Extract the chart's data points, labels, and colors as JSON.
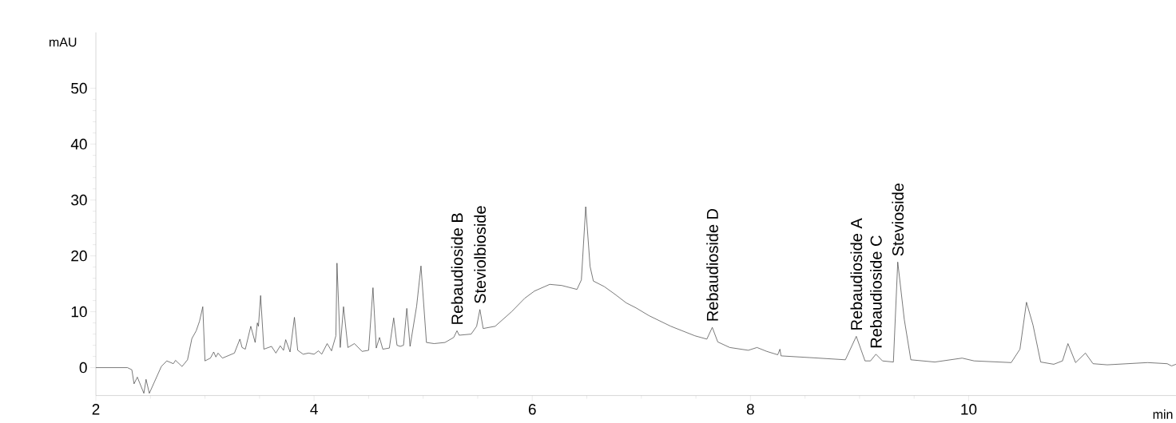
{
  "chart_data": {
    "type": "line",
    "xlabel": "min",
    "ylabel": "mAU",
    "xlim": [
      2,
      11.9
    ],
    "ylim": [
      -5,
      60
    ],
    "xticks": [
      2,
      4,
      6,
      8,
      10
    ],
    "yticks": [
      0,
      10,
      20,
      30,
      40,
      50
    ],
    "series": [
      {
        "color": "#404040",
        "x": [
          2.0,
          2.29,
          2.33,
          2.35,
          2.38,
          2.41,
          2.44,
          2.46,
          2.49,
          2.57,
          2.6,
          2.65,
          2.71,
          2.73,
          2.79,
          2.84,
          2.88,
          2.92,
          2.95,
          2.98,
          3.0,
          3.05,
          3.08,
          3.1,
          3.12,
          3.16,
          3.27,
          3.32,
          3.34,
          3.37,
          3.42,
          3.46,
          3.48,
          3.49,
          3.51,
          3.54,
          3.61,
          3.65,
          3.69,
          3.72,
          3.74,
          3.78,
          3.82,
          3.85,
          3.9,
          3.95,
          4.0,
          4.04,
          4.07,
          4.12,
          4.16,
          4.2,
          4.21,
          4.24,
          4.27,
          4.31,
          4.37,
          4.44,
          4.5,
          4.54,
          4.57,
          4.6,
          4.63,
          4.69,
          4.73,
          4.76,
          4.79,
          4.82,
          4.85,
          4.88,
          4.94,
          4.98,
          5.03,
          5.1,
          5.2,
          5.28,
          5.31,
          5.33,
          5.44,
          5.49,
          5.52,
          5.55,
          5.66,
          5.81,
          5.93,
          6.02,
          6.16,
          6.27,
          6.41,
          6.45,
          6.49,
          6.53,
          6.56,
          6.66,
          6.76,
          6.86,
          6.95,
          7.07,
          7.27,
          7.49,
          7.6,
          7.65,
          7.7,
          7.81,
          7.98,
          8.06,
          8.15,
          8.25,
          8.27,
          8.28,
          8.54,
          8.87,
          8.97,
          9.05,
          9.1,
          9.15,
          9.21,
          9.31,
          9.35,
          9.41,
          9.47,
          9.69,
          9.94,
          10.05,
          10.39,
          10.47,
          10.53,
          10.59,
          10.66,
          10.78,
          10.86,
          10.91,
          10.98,
          11.07,
          11.14,
          11.27,
          11.64,
          11.82,
          11.86,
          11.9
        ],
        "values": [
          0,
          0,
          -0.4,
          -2.9,
          -1.7,
          null,
          -4.6,
          -2.1,
          -4.6,
          null,
          0.2,
          1.2,
          0.7,
          1.3,
          0.2,
          1.4,
          5.2,
          6.6,
          8.3,
          10.9,
          1.2,
          1.7,
          2.8,
          1.9,
          2.6,
          1.7,
          2.6,
          5.1,
          3.6,
          3.3,
          7.4,
          4.5,
          8.0,
          7.4,
          12.9,
          3.3,
          3.8,
          2.6,
          3.9,
          3.1,
          5.0,
          2.8,
          9.0,
          3.1,
          2.4,
          2.6,
          2.4,
          3.0,
          2.4,
          4.3,
          3.0,
          5.7,
          18.7,
          3.6,
          10.9,
          3.6,
          4.3,
          2.9,
          3.1,
          14.3,
          3.5,
          5.4,
          3.3,
          3.5,
          8.9,
          4.0,
          3.8,
          4.0,
          10.6,
          3.8,
          11.0,
          18.2,
          4.5,
          4.3,
          4.5,
          5.4,
          6.6,
          5.8,
          6.0,
          7.4,
          10.4,
          7.0,
          7.4,
          10.0,
          12.4,
          13.7,
          14.9,
          14.7,
          14.0,
          15.7,
          28.8,
          18.1,
          15.5,
          14.5,
          13.1,
          11.6,
          10.7,
          9.3,
          7.4,
          5.7,
          5.1,
          7.2,
          4.6,
          3.6,
          3.1,
          3.6,
          2.9,
          2.3,
          3.3,
          2.1,
          1.8,
          1.4,
          5.6,
          1.2,
          1.2,
          2.4,
          1.2,
          1.0,
          18.9,
          8.6,
          1.4,
          1.0,
          1.7,
          1.2,
          0.9,
          3.3,
          11.7,
          7.6,
          1.0,
          0.6,
          1.2,
          4.3,
          0.9,
          2.6,
          0.7,
          0.5,
          0.9,
          0.7,
          0.3,
          0.6
        ]
      }
    ],
    "annotations": [
      {
        "text": "Rebaudioside B",
        "x": 5.31,
        "y": 6.6
      },
      {
        "text": "Steviolbioside",
        "x": 5.52,
        "y": 10.4
      },
      {
        "text": "Rebaudioside D",
        "x": 7.65,
        "y": 7.2
      },
      {
        "text": "Rebaudioside A",
        "x": 8.97,
        "y": 5.6
      },
      {
        "text": "Rebaudioside C",
        "x": 9.15,
        "y": 2.4
      },
      {
        "text": "Stevioside",
        "x": 9.35,
        "y": 18.9
      }
    ]
  }
}
